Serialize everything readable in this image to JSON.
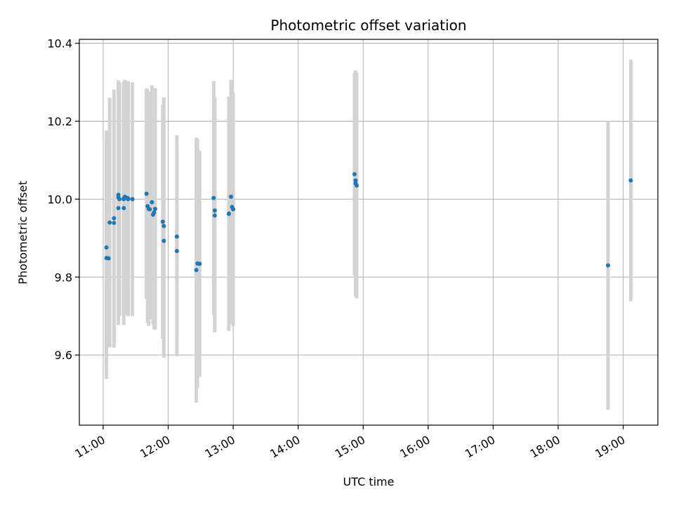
{
  "chart_data": {
    "type": "scatter",
    "title": "Photometric offset variation",
    "xlabel": "UTC time",
    "ylabel": "Photometric offset",
    "x_ticks": [
      "11:00",
      "12:00",
      "13:00",
      "14:00",
      "15:00",
      "16:00",
      "17:00",
      "18:00",
      "19:00"
    ],
    "x_tick_hours": [
      11,
      12,
      13,
      14,
      15,
      16,
      17,
      18,
      19
    ],
    "y_ticks": [
      9.6,
      9.8,
      10.0,
      10.2,
      10.4
    ],
    "y_tick_labels": [
      "9.6",
      "9.8",
      "10.0",
      "10.2",
      "10.4"
    ],
    "xlim": [
      "10:38",
      "19:32"
    ],
    "ylim": [
      9.42,
      10.41
    ],
    "grid": true,
    "colors": {
      "point": "#1f77b4",
      "errorbar": "#d3d3d3",
      "grid": "#b0b0b0"
    },
    "series": [
      {
        "x": [
          "11:03",
          "11:03",
          "11:05",
          "11:06",
          "11:10",
          "11:10",
          "11:14",
          "11:14",
          "11:14",
          "11:15",
          "11:19",
          "11:20",
          "11:19",
          "11:19",
          "11:22",
          "11:23",
          "11:23",
          "11:27",
          "11:40",
          "11:41",
          "11:42",
          "11:43",
          "11:45",
          "11:46",
          "11:48",
          "11:47",
          "11:55",
          "11:56",
          "11:56",
          "12:08",
          "12:08",
          "12:26",
          "12:27",
          "12:29",
          "12:42",
          "12:43",
          "12:43",
          "12:56",
          "12:56",
          "12:58",
          "12:59",
          "13:00",
          "14:52",
          "14:53",
          "14:53",
          "14:54",
          "18:46",
          "19:07"
        ],
        "y": [
          9.876,
          9.849,
          9.848,
          9.94,
          9.939,
          9.951,
          9.977,
          10.005,
          10.011,
          10.0,
          10.0,
          10.006,
          10.002,
          9.977,
          10.003,
          10.002,
          10.0,
          10.0,
          10.014,
          9.982,
          9.975,
          9.974,
          9.992,
          9.96,
          9.975,
          9.966,
          9.942,
          9.931,
          9.893,
          9.904,
          9.867,
          9.818,
          9.835,
          9.834,
          10.003,
          9.971,
          9.958,
          9.962,
          9.963,
          10.006,
          9.98,
          9.974,
          10.064,
          10.048,
          10.04,
          10.035,
          9.83,
          10.048
        ],
        "err": [
          0.3,
          0.31,
          0.2,
          0.32,
          0.32,
          0.33,
          0.3,
          0.3,
          0.29,
          0.3,
          0.3,
          0.3,
          0.3,
          0.3,
          0.3,
          0.3,
          0.3,
          0.3,
          0.27,
          0.3,
          0.3,
          0.25,
          0.3,
          0.28,
          0.31,
          0.3,
          0.3,
          0.33,
          0.3,
          0.26,
          0.27,
          0.34,
          0.32,
          0.29,
          0.3,
          0.29,
          0.3,
          0.3,
          0.3,
          0.3,
          0.3,
          0.3,
          0.26,
          0.28,
          0.29,
          0.29,
          0.37,
          0.31
        ]
      }
    ]
  }
}
